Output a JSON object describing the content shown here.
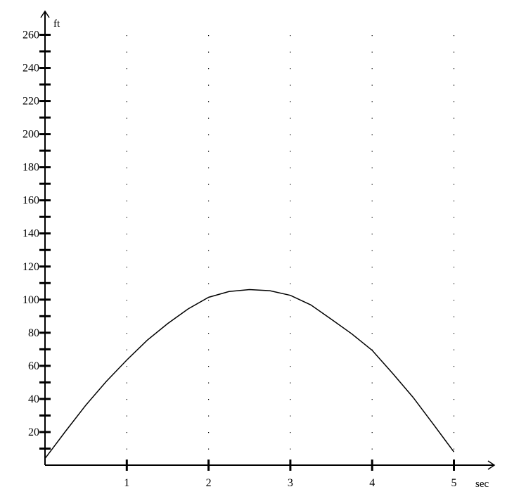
{
  "chart_data": {
    "type": "line",
    "xlabel": "sec",
    "ylabel": "ft",
    "xlim": [
      0,
      5.4
    ],
    "ylim": [
      0,
      268
    ],
    "x_ticks": [
      1,
      2,
      3,
      4,
      5
    ],
    "x_tick_labels": [
      "1",
      "2",
      "3",
      "4",
      "5"
    ],
    "y_minor_ticks": [
      10,
      20,
      30,
      40,
      50,
      60,
      70,
      80,
      90,
      100,
      110,
      120,
      130,
      140,
      150,
      160,
      170,
      180,
      190,
      200,
      210,
      220,
      230,
      240,
      250,
      260
    ],
    "y_tick_labels": [
      "20",
      "40",
      "60",
      "80",
      "100",
      "120",
      "140",
      "160",
      "180",
      "200",
      "220",
      "240",
      "260"
    ],
    "y_labeled_ticks": [
      20,
      40,
      60,
      80,
      100,
      120,
      140,
      160,
      180,
      200,
      220,
      240,
      260
    ],
    "grid": "dotted vertical lines at x ticks",
    "series": [
      {
        "x": [
          0,
          0.25,
          0.5,
          0.75,
          1,
          1.25,
          1.5,
          1.75,
          2,
          2.25,
          2.5,
          2.75,
          3,
          3.25,
          3.5,
          3.75,
          4,
          4.25,
          4.5,
          4.75,
          5
        ],
        "values": [
          4,
          20.4,
          36.3,
          50.6,
          63.5,
          75.5,
          85.5,
          94.4,
          101.4,
          104.9,
          106.1,
          105.4,
          102.6,
          96.8,
          88.2,
          79.4,
          69.4,
          55.5,
          41,
          24.6,
          8
        ]
      }
    ]
  }
}
